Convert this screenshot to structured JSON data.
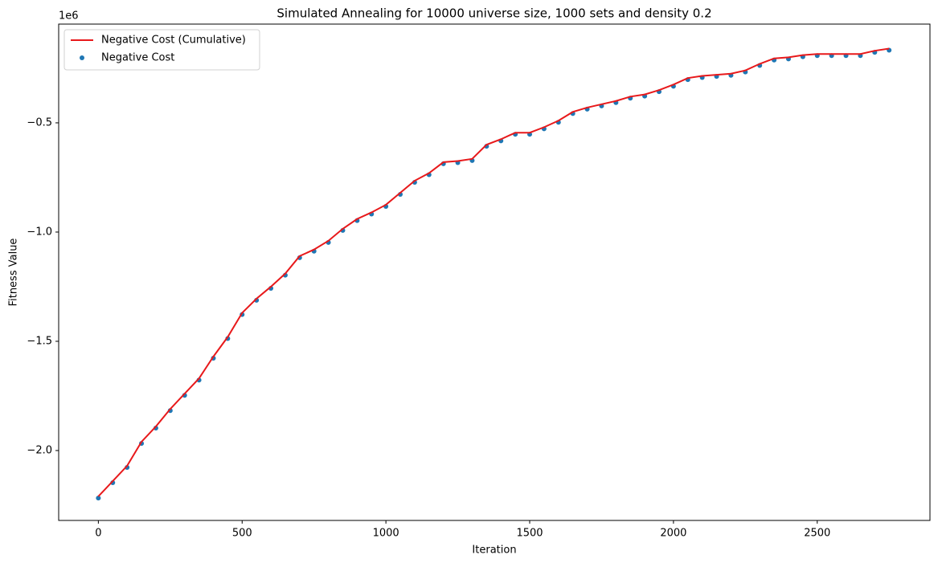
{
  "chart_data": {
    "type": "line",
    "title": "Simulated Annealing for 10000 universe size, 1000 sets and density 0.2",
    "x_label": "Iteration",
    "y_label": "Fitness Value",
    "y_offset_label": "1e6",
    "x": [
      0,
      50,
      100,
      150,
      200,
      250,
      300,
      350,
      400,
      450,
      500,
      550,
      600,
      650,
      700,
      750,
      800,
      850,
      900,
      950,
      1000,
      1050,
      1100,
      1150,
      1200,
      1250,
      1300,
      1350,
      1400,
      1450,
      1500,
      1550,
      1600,
      1650,
      1700,
      1750,
      1800,
      1850,
      1900,
      1950,
      2000,
      2050,
      2100,
      2150,
      2200,
      2250,
      2300,
      2350,
      2400,
      2450,
      2500,
      2550,
      2600,
      2650,
      2700,
      2750
    ],
    "series": [
      {
        "name": "Negative Cost (Cumulative)",
        "style": "line",
        "color": "#e8191b",
        "values": [
          -2210000,
          -2140000,
          -2070000,
          -1960000,
          -1890000,
          -1810000,
          -1740000,
          -1670000,
          -1570000,
          -1480000,
          -1370000,
          -1305000,
          -1250000,
          -1190000,
          -1110000,
          -1080000,
          -1040000,
          -985000,
          -940000,
          -910000,
          -875000,
          -820000,
          -765000,
          -730000,
          -680000,
          -675000,
          -665000,
          -600000,
          -575000,
          -545000,
          -545000,
          -520000,
          -490000,
          -450000,
          -430000,
          -415000,
          -400000,
          -380000,
          -370000,
          -350000,
          -325000,
          -295000,
          -285000,
          -280000,
          -275000,
          -260000,
          -230000,
          -205000,
          -200000,
          -190000,
          -185000,
          -185000,
          -185000,
          -185000,
          -170000,
          -160000
        ]
      },
      {
        "name": "Negative Cost",
        "style": "scatter",
        "color": "#1f77b4",
        "values": [
          -2210000,
          -2140000,
          -2070000,
          -1960000,
          -1890000,
          -1810000,
          -1740000,
          -1670000,
          -1570000,
          -1480000,
          -1370000,
          -1305000,
          -1250000,
          -1190000,
          -1110000,
          -1080000,
          -1040000,
          -985000,
          -940000,
          -910000,
          -875000,
          -820000,
          -765000,
          -730000,
          -680000,
          -675000,
          -665000,
          -600000,
          -575000,
          -545000,
          -545000,
          -520000,
          -490000,
          -450000,
          -430000,
          -415000,
          -400000,
          -380000,
          -370000,
          -350000,
          -325000,
          -295000,
          -285000,
          -280000,
          -275000,
          -260000,
          -230000,
          -205000,
          -200000,
          -190000,
          -185000,
          -185000,
          -185000,
          -185000,
          -170000,
          -160000
        ]
      }
    ],
    "xlim": [
      -138,
      2892
    ],
    "ylim": [
      -2320000,
      -48000
    ],
    "xticks": [
      0,
      500,
      1000,
      1500,
      2000,
      2500
    ],
    "yticks": [
      {
        "value": -2000000,
        "label": "−2.0"
      },
      {
        "value": -1500000,
        "label": "−1.5"
      },
      {
        "value": -1000000,
        "label": "−1.0"
      },
      {
        "value": -500000,
        "label": "−0.5"
      }
    ],
    "legend": "upper left",
    "grid": false
  }
}
